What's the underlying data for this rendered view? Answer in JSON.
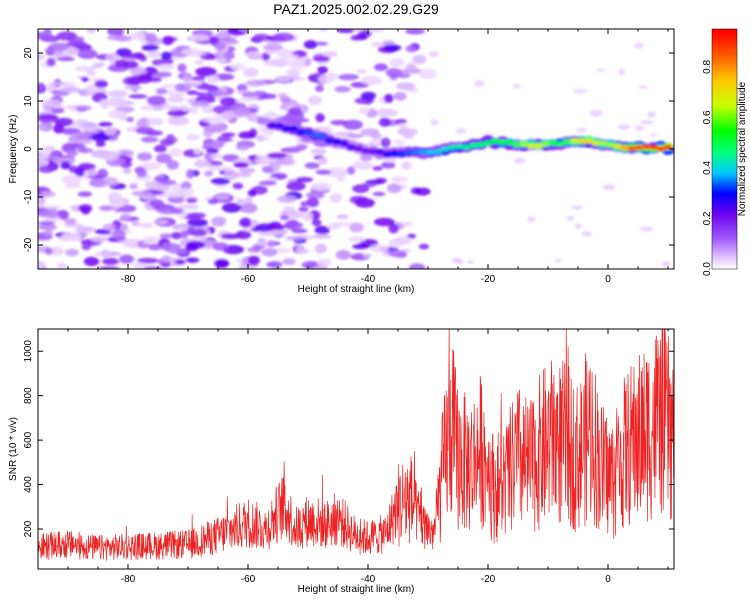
{
  "title": "PAZ1.2025.002.02.29.G29",
  "colors": {
    "snr_line": "#ee2222",
    "axes": "#000000",
    "colorbar": [
      "#ff0000",
      "#ff00ff",
      "#ff00c8",
      "#8000ff",
      "#0000ff",
      "#00c8ff",
      "#00ff80",
      "#00ff00",
      "#c8ff00",
      "#ffd000",
      "#ff6000",
      "#ff0000"
    ]
  },
  "chart_data": [
    {
      "type": "heatmap",
      "xlabel": "Height of straight line (km)",
      "ylabel": "Frequency (Hz)",
      "xlim": [
        -95,
        11
      ],
      "ylim": [
        -25,
        25
      ],
      "x_ticks": [
        -80,
        -60,
        -40,
        -20,
        0
      ],
      "y_ticks": [
        -20,
        -10,
        0,
        10,
        20
      ],
      "ridge": {
        "x": [
          -56,
          -52,
          -48,
          -44,
          -40,
          -36,
          -32,
          -28,
          -24,
          -20,
          -16,
          -12,
          -8,
          -4,
          0,
          4,
          8,
          11
        ],
        "y": [
          5,
          4,
          2.5,
          1,
          -0.5,
          -1,
          -0.8,
          -0.4,
          0.5,
          1.5,
          1.2,
          0.7,
          1.2,
          1.8,
          1,
          0.2,
          0.2,
          0.2
        ],
        "amplitude": [
          0.25,
          0.3,
          0.35,
          0.25,
          0.2,
          0.3,
          0.35,
          0.4,
          0.45,
          0.5,
          0.55,
          0.7,
          0.5,
          0.75,
          0.6,
          0.85,
          0.9,
          0.9
        ]
      },
      "noise_region_x": [
        -95,
        -38
      ],
      "colorbar": {
        "label": "Normalized spectral amplitude",
        "range": [
          0,
          0.95
        ],
        "ticks": [
          "0.0",
          "0.2",
          "0.4",
          "0.6",
          "0.8"
        ]
      }
    },
    {
      "type": "line",
      "xlabel": "Height of straight line (km)",
      "ylabel": "SNR (10 * v/v)",
      "xlim": [
        -95,
        11
      ],
      "ylim": [
        20,
        1100
      ],
      "x_ticks": [
        -80,
        -60,
        -40,
        -20,
        0
      ],
      "y_ticks": [
        200,
        400,
        600,
        800,
        1000
      ],
      "series": [
        {
          "x": [
            -95,
            -90,
            -85,
            -80,
            -75,
            -70,
            -65,
            -60,
            -57,
            -54,
            -52,
            -50,
            -47,
            -45,
            -42,
            -40,
            -37,
            -35,
            -33,
            -31,
            -29,
            -27,
            -26,
            -25,
            -23,
            -21,
            -19,
            -17,
            -15,
            -13,
            -11,
            -9,
            -7,
            -5,
            -3,
            -1,
            1,
            3,
            5,
            7,
            9,
            11
          ],
          "y": [
            120,
            130,
            115,
            120,
            125,
            130,
            170,
            230,
            200,
            310,
            200,
            240,
            220,
            250,
            170,
            160,
            180,
            310,
            340,
            220,
            180,
            550,
            650,
            520,
            480,
            560,
            380,
            420,
            520,
            470,
            560,
            600,
            580,
            520,
            650,
            470,
            420,
            560,
            600,
            650,
            720,
            600
          ]
        }
      ]
    }
  ]
}
